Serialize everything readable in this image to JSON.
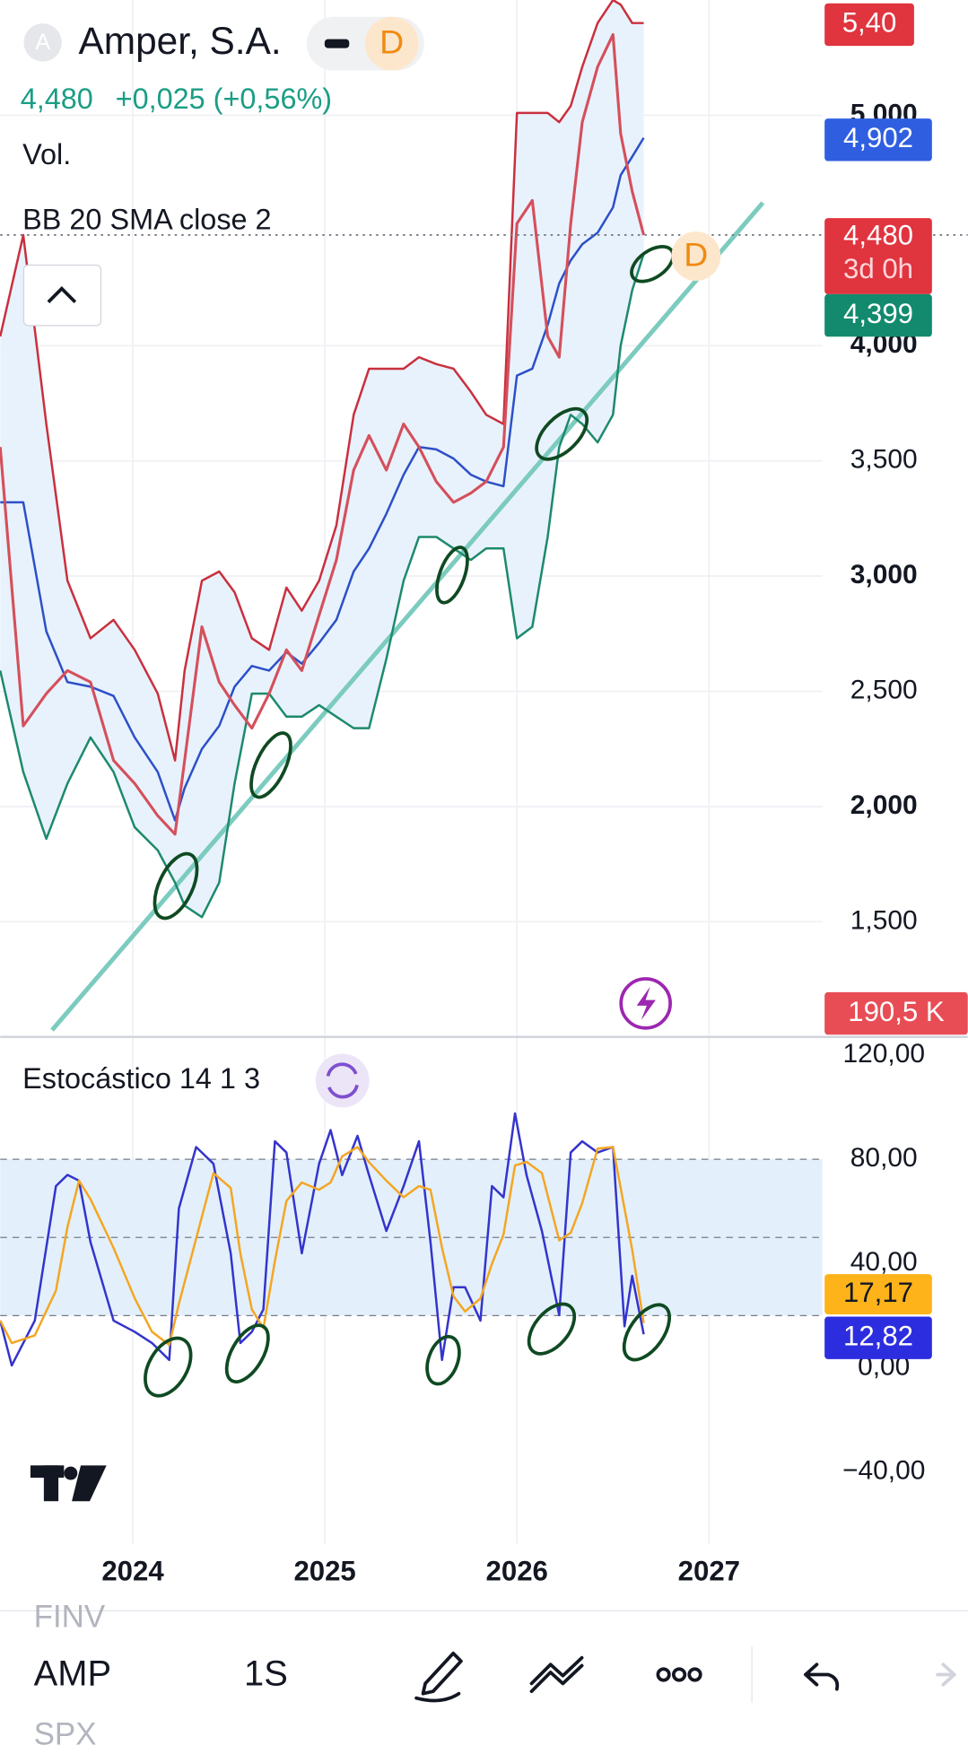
{
  "header": {
    "icon": "A",
    "name": "Amper, S.A.",
    "interval": "D",
    "price": "4,480",
    "change": "+0,025 (+0,56%)"
  },
  "chart_data": [
    {
      "type": "line",
      "indicator": "BB 20 SMA close 2",
      "volume_title": "Vol.",
      "volume_label": "190,5 K",
      "countdown": "3d 0h",
      "marker": "D",
      "x": [
        2023.31,
        2023.43,
        2023.55,
        2023.66,
        2023.78,
        2023.9,
        2024.01,
        2024.13,
        2024.22,
        2024.27,
        2024.36,
        2024.45,
        2024.53,
        2024.62,
        2024.71,
        2024.8,
        2024.88,
        2024.97,
        2025.06,
        2025.15,
        2025.23,
        2025.32,
        2025.41,
        2025.49,
        2025.58,
        2025.67,
        2025.76,
        2025.84,
        2025.93,
        2026.0,
        2026.08,
        2026.16,
        2026.22,
        2026.28,
        2026.34,
        2026.42,
        2026.5,
        2026.54,
        2026.6,
        2026.66
      ],
      "xlim": [
        2023.31,
        2027.59
      ],
      "xticks": [
        2024,
        2025,
        2026,
        2027
      ],
      "ylim": [
        1.0,
        5.5
      ],
      "yticks": [
        {
          "value": 1.5,
          "label": "1,500"
        },
        {
          "value": 2,
          "label": "2,000"
        },
        {
          "value": 2.5,
          "label": "2,500"
        },
        {
          "value": 3,
          "label": "3,000"
        },
        {
          "value": 3.5,
          "label": "3,500"
        },
        {
          "value": 4,
          "label": "4,000"
        },
        {
          "value": 5,
          "label": "5,000"
        }
      ],
      "grid": true,
      "band_fill": "#e8f2fc",
      "series": [
        {
          "color": "#d4505c",
          "last_label": "4,480",
          "values": [
            3.56,
            2.35,
            2.49,
            2.59,
            2.54,
            2.2,
            2.1,
            1.96,
            1.88,
            2.2,
            2.78,
            2.54,
            2.44,
            2.34,
            2.49,
            2.68,
            2.59,
            2.83,
            3.07,
            3.46,
            3.61,
            3.46,
            3.66,
            3.56,
            3.41,
            3.32,
            3.36,
            3.41,
            3.56,
            4.53,
            4.63,
            4.04,
            3.95,
            4.53,
            4.97,
            5.21,
            5.35,
            4.92,
            4.67,
            4.48
          ]
        },
        {
          "color": "#c9303e",
          "last_label": "5,40",
          "values": [
            4.04,
            4.48,
            3.66,
            2.98,
            2.73,
            2.81,
            2.68,
            2.49,
            2.2,
            2.59,
            2.98,
            3.02,
            2.93,
            2.73,
            2.68,
            2.95,
            2.85,
            2.98,
            3.22,
            3.7,
            3.9,
            3.9,
            3.9,
            3.95,
            3.92,
            3.9,
            3.8,
            3.7,
            3.66,
            5.01,
            5.01,
            5.01,
            4.97,
            5.04,
            5.21,
            5.4,
            5.5,
            5.48,
            5.4,
            5.4
          ]
        },
        {
          "color": "#2c50c8",
          "last_label": "4,902",
          "values": [
            3.32,
            3.32,
            2.76,
            2.54,
            2.52,
            2.48,
            2.3,
            2.15,
            1.94,
            2.08,
            2.25,
            2.35,
            2.52,
            2.61,
            2.59,
            2.67,
            2.62,
            2.71,
            2.81,
            3.02,
            3.12,
            3.27,
            3.44,
            3.56,
            3.55,
            3.51,
            3.44,
            3.41,
            3.39,
            3.87,
            3.9,
            4.09,
            4.27,
            4.37,
            4.44,
            4.49,
            4.6,
            4.74,
            4.82,
            4.902
          ]
        },
        {
          "color": "#1d8a6c",
          "last_label": "4,399",
          "values": [
            2.59,
            2.15,
            1.86,
            2.1,
            2.3,
            2.15,
            1.91,
            1.81,
            1.67,
            1.57,
            1.52,
            1.67,
            2.1,
            2.49,
            2.49,
            2.39,
            2.39,
            2.44,
            2.39,
            2.34,
            2.34,
            2.64,
            2.98,
            3.17,
            3.17,
            3.12,
            3.07,
            3.12,
            3.12,
            2.73,
            2.78,
            3.17,
            3.56,
            3.7,
            3.66,
            3.58,
            3.7,
            4.0,
            4.24,
            4.399
          ]
        }
      ],
      "trendline": {
        "color": "#7ccbbf",
        "x": [
          2023.58,
          2027.28
        ],
        "values": [
          1.03,
          4.62
        ]
      }
    },
    {
      "type": "line",
      "title": "Estocástico 14 1 3",
      "x": [
        2023.31,
        2023.37,
        2023.49,
        2023.6,
        2023.66,
        2023.72,
        2023.78,
        2023.9,
        2024.01,
        2024.1,
        2024.19,
        2024.24,
        2024.33,
        2024.42,
        2024.51,
        2024.56,
        2024.62,
        2024.68,
        2024.74,
        2024.8,
        2024.88,
        2024.97,
        2025.03,
        2025.09,
        2025.17,
        2025.23,
        2025.32,
        2025.41,
        2025.49,
        2025.55,
        2025.61,
        2025.67,
        2025.73,
        2025.81,
        2025.87,
        2025.93,
        2025.99,
        2026.05,
        2026.13,
        2026.22,
        2026.28,
        2026.34,
        2026.42,
        2026.5,
        2026.56,
        2026.6,
        2026.66
      ],
      "xlim": [
        2023.31,
        2027.59
      ],
      "ylim": [
        -67.5,
        126.5
      ],
      "yticks": [
        {
          "value": 120,
          "label": "120,00"
        },
        {
          "value": 80,
          "label": "80,00"
        },
        {
          "value": 40,
          "label": "40,00"
        },
        {
          "value": 0,
          "label": "0,00"
        },
        {
          "value": -40,
          "label": "−40,00"
        }
      ],
      "hlines": [
        80,
        50,
        20
      ],
      "band_fill": "#e3f0fb",
      "series": [
        {
          "color": "#3434cc",
          "last_label": "12,82",
          "values": [
            18.1,
            0.9,
            18.1,
            69.7,
            74.0,
            71.8,
            48.2,
            18.1,
            13.8,
            9.5,
            3.0,
            61.1,
            84.7,
            78.3,
            43.9,
            9.5,
            13.8,
            22.4,
            86.9,
            82.6,
            43.9,
            78.3,
            91.2,
            73.9,
            89.0,
            73.9,
            52.5,
            69.7,
            86.9,
            48.2,
            3.0,
            30.9,
            30.9,
            18.1,
            69.7,
            65.4,
            97.6,
            73.9,
            52.5,
            20.2,
            82.6,
            86.9,
            82.6,
            84.7,
            15.9,
            35.3,
            12.82
          ]
        },
        {
          "color": "#f4a623",
          "last_label": "17,17",
          "values": [
            18.1,
            9.5,
            12.4,
            29.6,
            54.0,
            71.8,
            64.7,
            46.0,
            26.7,
            13.8,
            8.8,
            24.5,
            49.6,
            74.7,
            69.0,
            43.9,
            22.4,
            15.2,
            41.0,
            64.0,
            71.1,
            68.3,
            71.1,
            81.1,
            84.7,
            78.9,
            71.8,
            65.4,
            69.7,
            68.3,
            46.0,
            27.4,
            21.6,
            26.6,
            39.9,
            51.1,
            77.6,
            79.0,
            74.7,
            48.9,
            51.8,
            63.2,
            84.1,
            84.7,
            61.1,
            45.3,
            17.17
          ]
        }
      ]
    }
  ],
  "toolbar": {
    "above": "FINV",
    "symbol": "AMP",
    "interval": "1S",
    "below": "SPX"
  }
}
